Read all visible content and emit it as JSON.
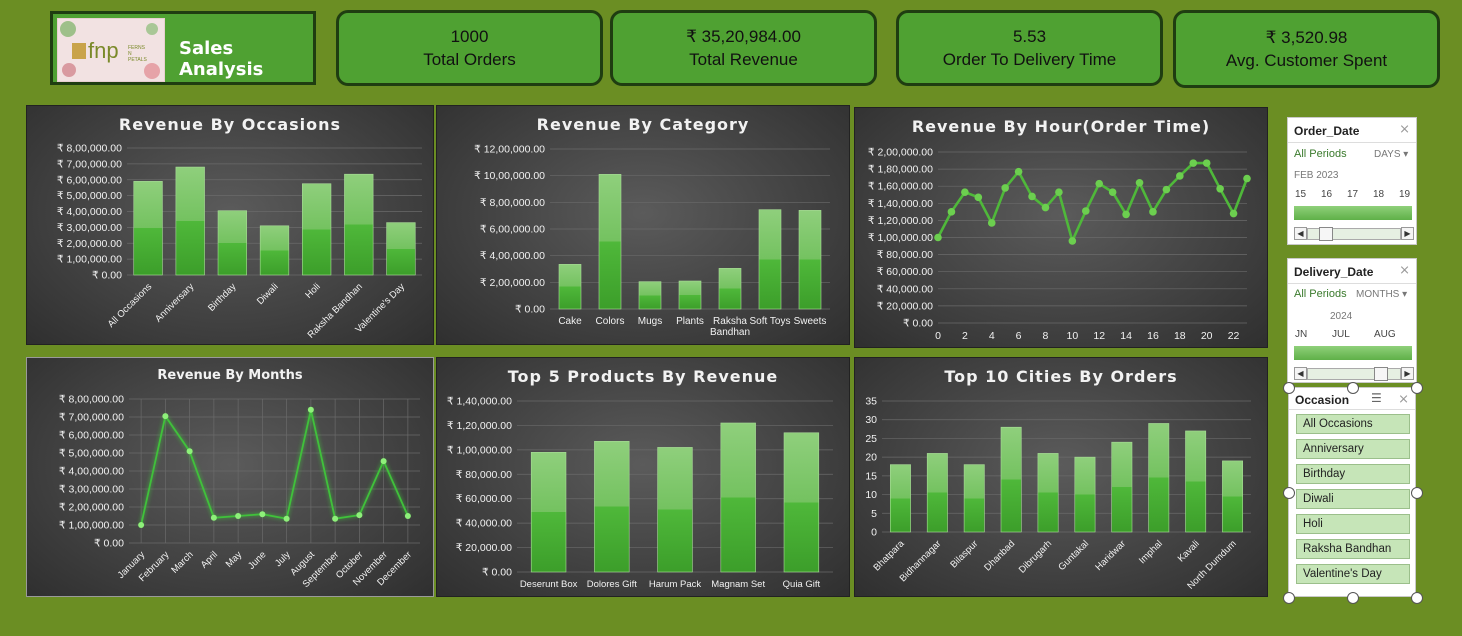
{
  "header": {
    "title": "Sales Analysis",
    "logo_text": "fnp",
    "logo_small": "FERNS N PETALS"
  },
  "kpis": [
    {
      "value": "1000",
      "label": "Total Orders"
    },
    {
      "value": "₹ 35,20,984.00",
      "label": "Total Revenue"
    },
    {
      "value": "5.53",
      "label": "Order To Delivery Time"
    },
    {
      "value": "₹ 3,520.98",
      "label": "Avg. Customer Spent"
    }
  ],
  "colors": {
    "page_bg": "#6b8e23",
    "kpi_bg": "#4fa132",
    "bar_green": "#4fb83a",
    "line_green": "#44c23a"
  },
  "chart_data": [
    {
      "type": "bar",
      "title": "Revenue By Occasions",
      "categories": [
        "All Occasions",
        "Anniversary",
        "Birthday",
        "Diwali",
        "Holi",
        "Raksha Bandhan",
        "Valentine's Day"
      ],
      "values": [
        590000,
        680000,
        405000,
        310000,
        575000,
        635000,
        330000
      ],
      "yticks": [
        "₹ 0.00",
        "₹ 1,00,000.00",
        "₹ 2,00,000.00",
        "₹ 3,00,000.00",
        "₹ 4,00,000.00",
        "₹ 5,00,000.00",
        "₹ 6,00,000.00",
        "₹ 7,00,000.00",
        "₹ 8,00,000.00"
      ],
      "ylim": [
        0,
        800000
      ]
    },
    {
      "type": "bar",
      "title": "Revenue By Category",
      "categories": [
        "Cake",
        "Colors",
        "Mugs",
        "Plants",
        "Raksha Bandhan",
        "Soft Toys",
        "Sweets"
      ],
      "values": [
        335000,
        1010000,
        205000,
        210000,
        305000,
        745000,
        740000
      ],
      "yticks": [
        "₹ 0.00",
        "₹ 2,00,000.00",
        "₹ 4,00,000.00",
        "₹ 6,00,000.00",
        "₹ 8,00,000.00",
        "₹ 10,00,000.00",
        "₹ 12,00,000.00"
      ],
      "ylim": [
        0,
        1200000
      ]
    },
    {
      "type": "line",
      "title": "Revenue By Hour(Order Time)",
      "x": [
        0,
        1,
        2,
        3,
        4,
        5,
        6,
        7,
        8,
        9,
        10,
        11,
        12,
        13,
        14,
        15,
        16,
        17,
        18,
        19,
        20,
        21,
        22,
        23
      ],
      "values": [
        100000,
        130000,
        153000,
        147000,
        117000,
        158000,
        177000,
        148000,
        135000,
        153000,
        96000,
        131000,
        163000,
        153000,
        127000,
        164000,
        130000,
        156000,
        172000,
        187000,
        187000,
        157000,
        128000,
        169000
      ],
      "xticks": [
        "0",
        "2",
        "4",
        "6",
        "8",
        "10",
        "12",
        "14",
        "16",
        "18",
        "20",
        "22"
      ],
      "yticks": [
        "₹ 0.00",
        "₹ 20,000.00",
        "₹ 40,000.00",
        "₹ 60,000.00",
        "₹ 80,000.00",
        "₹ 1,00,000.00",
        "₹ 1,20,000.00",
        "₹ 1,40,000.00",
        "₹ 1,60,000.00",
        "₹ 1,80,000.00",
        "₹ 2,00,000.00"
      ],
      "ylim": [
        0,
        200000
      ]
    },
    {
      "type": "line",
      "title": "Revenue By Months",
      "categories": [
        "January",
        "February",
        "March",
        "April",
        "May",
        "June",
        "July",
        "August",
        "September",
        "October",
        "November",
        "December"
      ],
      "values": [
        100000,
        705000,
        510000,
        140000,
        150000,
        160000,
        135000,
        740000,
        135000,
        155000,
        455000,
        150000
      ],
      "yticks": [
        "₹ 0.00",
        "₹ 1,00,000.00",
        "₹ 2,00,000.00",
        "₹ 3,00,000.00",
        "₹ 4,00,000.00",
        "₹ 5,00,000.00",
        "₹ 6,00,000.00",
        "₹ 7,00,000.00",
        "₹ 8,00,000.00"
      ],
      "ylim": [
        0,
        800000
      ]
    },
    {
      "type": "bar",
      "title": "Top 5 Products By Revenue",
      "categories": [
        "Deserunt Box",
        "Dolores Gift",
        "Harum Pack",
        "Magnam Set",
        "Quia Gift"
      ],
      "values": [
        98000,
        107000,
        102000,
        122000,
        114000
      ],
      "yticks": [
        "₹ 0.00",
        "₹ 20,000.00",
        "₹ 40,000.00",
        "₹ 60,000.00",
        "₹ 80,000.00",
        "₹ 1,00,000.00",
        "₹ 1,20,000.00",
        "₹ 1,40,000.00"
      ],
      "ylim": [
        0,
        140000
      ]
    },
    {
      "type": "bar",
      "title": "Top 10 Cities By Orders",
      "categories": [
        "Bhatpara",
        "Bidhannagar",
        "Bilaspur",
        "Dhanbad",
        "Dibrugarh",
        "Guntakal",
        "Haridwar",
        "Imphal",
        "Kavali",
        "North Dumdum"
      ],
      "values": [
        18,
        21,
        18,
        28,
        21,
        20,
        24,
        29,
        27,
        19
      ],
      "yticks": [
        "0",
        "5",
        "10",
        "15",
        "20",
        "25",
        "30",
        "35"
      ],
      "ylim": [
        0,
        35
      ]
    }
  ],
  "slicers": {
    "order_date": {
      "title": "Order_Date",
      "all_periods": "All Periods",
      "level": "DAYS",
      "period": "FEB 2023",
      "ticks": [
        "15",
        "16",
        "17",
        "18",
        "19"
      ]
    },
    "delivery_date": {
      "title": "Delivery_Date",
      "all_periods": "All Periods",
      "level": "MONTHS",
      "year": "2024",
      "ticks": [
        "JN",
        "JUL",
        "AUG"
      ]
    },
    "occasion": {
      "title": "Occasion",
      "items": [
        "All Occasions",
        "Anniversary",
        "Birthday",
        "Diwali",
        "Holi",
        "Raksha Bandhan",
        "Valentine's Day"
      ]
    }
  }
}
